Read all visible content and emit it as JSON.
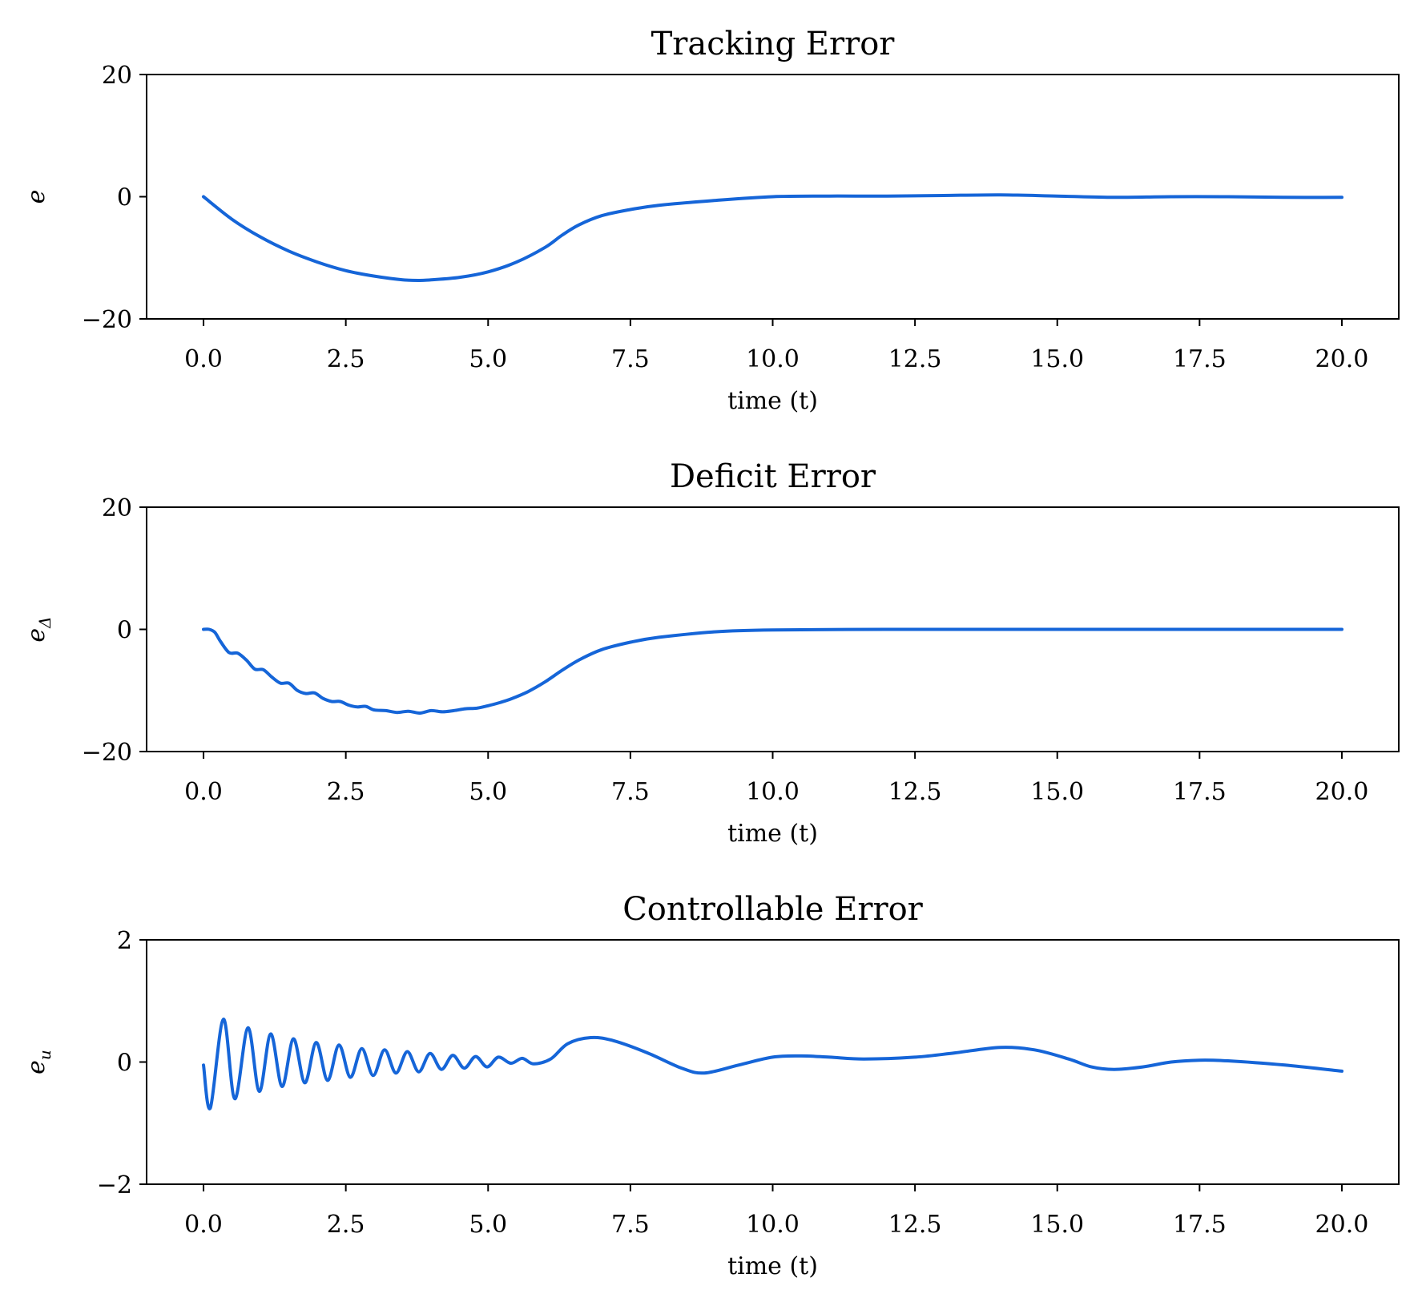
{
  "chart_data": [
    {
      "type": "line",
      "title": "Tracking Error",
      "xlabel": "time (t)",
      "ylabel": "e",
      "ylabel_sub": "",
      "xlim": [
        -1,
        21
      ],
      "ylim": [
        -20,
        20
      ],
      "xticks": [
        0,
        2.5,
        5,
        7.5,
        10,
        12.5,
        15,
        17.5,
        20
      ],
      "xtick_labels": [
        "0.0",
        "2.5",
        "5.0",
        "7.5",
        "10.0",
        "12.5",
        "15.0",
        "17.5",
        "20.0"
      ],
      "yticks": [
        -20,
        0,
        20
      ],
      "ytick_labels": [
        "−20",
        "0",
        "20"
      ],
      "grid": false,
      "series": [
        {
          "color": "#1565d8",
          "x": [
            0,
            0.5,
            1,
            1.5,
            2,
            2.5,
            3,
            3.5,
            3.8,
            4,
            4.5,
            5,
            5.5,
            6,
            6.3,
            6.6,
            7,
            7.5,
            8,
            9,
            10,
            11,
            12,
            13,
            14,
            15,
            16,
            17,
            18,
            19,
            20
          ],
          "y": [
            0,
            -3.7,
            -6.6,
            -8.9,
            -10.7,
            -12.1,
            -13.0,
            -13.6,
            -13.7,
            -13.6,
            -13.2,
            -12.3,
            -10.7,
            -8.3,
            -6.3,
            -4.6,
            -3.1,
            -2.1,
            -1.4,
            -0.6,
            0,
            0.1,
            0.1,
            0.2,
            0.3,
            0.1,
            -0.1,
            0,
            0,
            -0.1,
            -0.1
          ]
        }
      ]
    },
    {
      "type": "line",
      "title": "Deficit Error",
      "xlabel": "time (t)",
      "ylabel": "e",
      "ylabel_sub": "Δ",
      "xlim": [
        -1,
        21
      ],
      "ylim": [
        -20,
        20
      ],
      "xticks": [
        0,
        2.5,
        5,
        7.5,
        10,
        12.5,
        15,
        17.5,
        20
      ],
      "xtick_labels": [
        "0.0",
        "2.5",
        "5.0",
        "7.5",
        "10.0",
        "12.5",
        "15.0",
        "17.5",
        "20.0"
      ],
      "yticks": [
        -20,
        0,
        20
      ],
      "ytick_labels": [
        "−20",
        "0",
        "20"
      ],
      "grid": false,
      "series": [
        {
          "color": "#1565d8",
          "x": [
            0,
            0.1,
            0.2,
            0.3,
            0.45,
            0.6,
            0.75,
            0.9,
            1.05,
            1.2,
            1.35,
            1.5,
            1.65,
            1.8,
            1.95,
            2.1,
            2.25,
            2.4,
            2.55,
            2.7,
            2.85,
            3.0,
            3.2,
            3.4,
            3.6,
            3.8,
            4.0,
            4.2,
            4.4,
            4.6,
            4.8,
            5.0,
            5.2,
            5.4,
            5.7,
            6.0,
            6.3,
            6.6,
            7.0,
            7.5,
            8,
            9,
            10,
            12,
            14,
            16,
            18,
            20
          ],
          "y": [
            0,
            0,
            -0.5,
            -2.0,
            -3.8,
            -3.9,
            -5.0,
            -6.5,
            -6.6,
            -7.8,
            -8.8,
            -8.8,
            -10.0,
            -10.5,
            -10.4,
            -11.3,
            -11.8,
            -11.8,
            -12.4,
            -12.7,
            -12.6,
            -13.2,
            -13.3,
            -13.6,
            -13.4,
            -13.7,
            -13.3,
            -13.5,
            -13.3,
            -13.0,
            -12.9,
            -12.5,
            -12.0,
            -11.4,
            -10.2,
            -8.6,
            -6.7,
            -5.0,
            -3.3,
            -2.1,
            -1.3,
            -0.4,
            -0.1,
            0,
            0,
            0,
            0,
            0
          ]
        }
      ]
    },
    {
      "type": "line",
      "title": "Controllable Error",
      "xlabel": "time (t)",
      "ylabel": "e",
      "ylabel_sub": "u",
      "xlim": [
        -1,
        21
      ],
      "ylim": [
        -2,
        2
      ],
      "xticks": [
        0,
        2.5,
        5,
        7.5,
        10,
        12.5,
        15,
        17.5,
        20
      ],
      "xtick_labels": [
        "0.0",
        "2.5",
        "5.0",
        "7.5",
        "10.0",
        "12.5",
        "15.0",
        "17.5",
        "20.0"
      ],
      "yticks": [
        -2,
        0,
        2
      ],
      "ytick_labels": [
        "−2",
        "0",
        "2"
      ],
      "grid": false,
      "series": [
        {
          "color": "#1565d8",
          "x": [
            0,
            0.12,
            0.35,
            0.55,
            0.78,
            0.98,
            1.18,
            1.38,
            1.58,
            1.78,
            1.98,
            2.18,
            2.38,
            2.58,
            2.78,
            2.98,
            3.18,
            3.38,
            3.58,
            3.78,
            3.98,
            4.18,
            4.38,
            4.58,
            4.78,
            4.98,
            5.18,
            5.4,
            5.6,
            5.8,
            6.1,
            6.4,
            6.8,
            7.2,
            7.8,
            8.4,
            8.8,
            9.4,
            10,
            10.5,
            11,
            11.6,
            12.5,
            13.2,
            14,
            14.6,
            15.2,
            15.6,
            16,
            16.5,
            17,
            17.5,
            18,
            19,
            20
          ],
          "y": [
            -0.05,
            -0.75,
            0.7,
            -0.6,
            0.56,
            -0.48,
            0.46,
            -0.4,
            0.38,
            -0.34,
            0.32,
            -0.3,
            0.28,
            -0.25,
            0.22,
            -0.22,
            0.2,
            -0.18,
            0.17,
            -0.16,
            0.14,
            -0.12,
            0.11,
            -0.1,
            0.09,
            -0.08,
            0.08,
            -0.02,
            0.06,
            -0.03,
            0.05,
            0.3,
            0.4,
            0.35,
            0.15,
            -0.1,
            -0.18,
            -0.05,
            0.08,
            0.1,
            0.08,
            0.05,
            0.08,
            0.15,
            0.24,
            0.2,
            0.05,
            -0.08,
            -0.12,
            -0.08,
            0.0,
            0.03,
            0.02,
            -0.05,
            -0.15
          ]
        }
      ]
    }
  ]
}
